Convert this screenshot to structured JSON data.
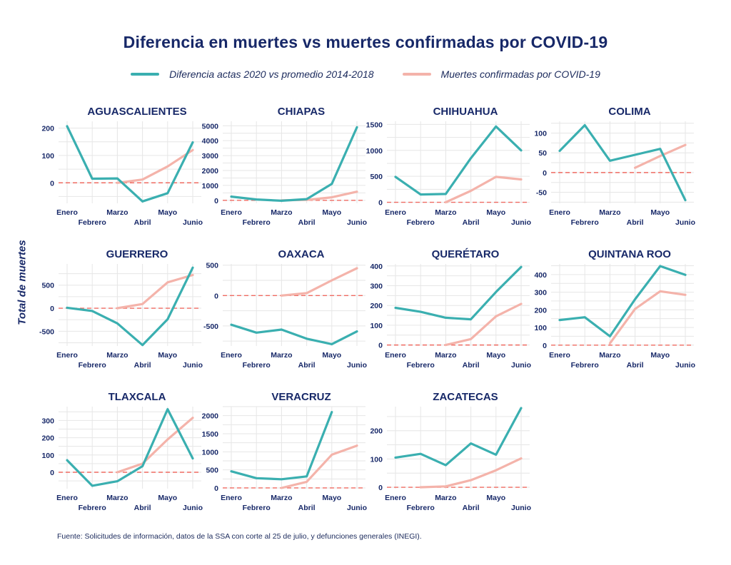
{
  "title": "Diferencia en muertes vs muertes confirmadas por COVID-19",
  "legend": [
    {
      "label": "Diferencia actas 2020 vs promedio 2014-2018",
      "color": "#3aafb0"
    },
    {
      "label": "Muertes confirmadas por COVID-19",
      "color": "#f4b3aa"
    }
  ],
  "ylabel": "Total de muertes",
  "source": "Fuente: Solicitudes de información, datos de la SSA con corte al 25 de julio, y defunciones generales (INEGI).",
  "colors": {
    "diff": "#3aafb0",
    "covid": "#f4b3aa",
    "zero": "#ef6b62",
    "grid": "#e6e6e6"
  },
  "chart_data": [
    {
      "type": "line",
      "title": "AGUASCALIENTES",
      "x": [
        "Enero",
        "Febrero",
        "Marzo",
        "Abril",
        "Mayo",
        "Junio"
      ],
      "ylim": [
        -75,
        225
      ],
      "yticks": [
        0,
        100,
        200
      ],
      "series": [
        {
          "name": "Diferencia actas 2020 vs promedio 2014-2018",
          "values": [
            207,
            15,
            16,
            -68,
            -38,
            148
          ]
        },
        {
          "name": "Muertes confirmadas por COVID-19",
          "values": [
            null,
            null,
            0,
            12,
            60,
            120
          ]
        }
      ]
    },
    {
      "type": "line",
      "title": "CHIAPAS",
      "x": [
        "Enero",
        "Febrero",
        "Marzo",
        "Abril",
        "Mayo",
        "Junio"
      ],
      "ylim": [
        -200,
        5300
      ],
      "yticks": [
        0,
        1000,
        2000,
        3000,
        4000,
        5000
      ],
      "series": [
        {
          "name": "Diferencia actas 2020 vs promedio 2014-2018",
          "values": [
            250,
            60,
            -30,
            80,
            1100,
            4900
          ]
        },
        {
          "name": "Muertes confirmadas por COVID-19",
          "values": [
            null,
            null,
            0,
            30,
            200,
            580
          ]
        }
      ]
    },
    {
      "type": "line",
      "title": "CHIHUAHUA",
      "x": [
        "Enero",
        "Febrero",
        "Marzo",
        "Abril",
        "Mayo",
        "Junio"
      ],
      "ylim": [
        -20,
        1560
      ],
      "yticks": [
        0,
        500,
        1000,
        1500
      ],
      "series": [
        {
          "name": "Diferencia actas 2020 vs promedio 2014-2018",
          "values": [
            490,
            150,
            160,
            850,
            1460,
            1000
          ]
        },
        {
          "name": "Muertes confirmadas por COVID-19",
          "values": [
            null,
            null,
            0,
            220,
            490,
            440
          ]
        }
      ]
    },
    {
      "type": "line",
      "title": "COLIMA",
      "x": [
        "Enero",
        "Febrero",
        "Marzo",
        "Abril",
        "Mayo",
        "Junio"
      ],
      "ylim": [
        -78,
        130
      ],
      "yticks": [
        -50,
        0,
        50,
        100
      ],
      "series": [
        {
          "name": "Diferencia actas 2020 vs promedio 2014-2018",
          "values": [
            55,
            120,
            30,
            45,
            60,
            -70
          ]
        },
        {
          "name": "Muertes confirmadas por COVID-19",
          "values": [
            null,
            null,
            null,
            12,
            42,
            70
          ]
        }
      ]
    },
    {
      "type": "line",
      "title": "GUERRERO",
      "x": [
        "Enero",
        "Febrero",
        "Marzo",
        "Abril",
        "Mayo",
        "Junio"
      ],
      "ylim": [
        -820,
        960
      ],
      "yticks": [
        -500,
        0,
        500
      ],
      "series": [
        {
          "name": "Diferencia actas 2020 vs promedio 2014-2018",
          "values": [
            10,
            -60,
            -330,
            -800,
            -240,
            880
          ]
        },
        {
          "name": "Muertes confirmadas por COVID-19",
          "values": [
            null,
            null,
            0,
            90,
            560,
            720
          ]
        }
      ]
    },
    {
      "type": "line",
      "title": "OAXACA",
      "x": [
        "Enero",
        "Febrero",
        "Marzo",
        "Abril",
        "Mayo",
        "Junio"
      ],
      "ylim": [
        -830,
        520
      ],
      "yticks": [
        -500,
        0,
        500
      ],
      "series": [
        {
          "name": "Diferencia actas 2020 vs promedio 2014-2018",
          "values": [
            -480,
            -610,
            -560,
            -710,
            -800,
            -590
          ]
        },
        {
          "name": "Muertes confirmadas por COVID-19",
          "values": [
            null,
            null,
            0,
            40,
            250,
            450
          ]
        }
      ]
    },
    {
      "type": "line",
      "title": "QUERÉTARO",
      "x": [
        "Enero",
        "Febrero",
        "Marzo",
        "Abril",
        "Mayo",
        "Junio"
      ],
      "ylim": [
        -5,
        410
      ],
      "yticks": [
        0,
        100,
        200,
        300,
        400
      ],
      "series": [
        {
          "name": "Diferencia actas 2020 vs promedio 2014-2018",
          "values": [
            188,
            168,
            138,
            130,
            268,
            395
          ]
        },
        {
          "name": "Muertes confirmadas por COVID-19",
          "values": [
            null,
            null,
            0,
            30,
            145,
            208
          ]
        }
      ]
    },
    {
      "type": "line",
      "title": "QUINTANA ROO",
      "x": [
        "Enero",
        "Febrero",
        "Marzo",
        "Abril",
        "Mayo",
        "Junio"
      ],
      "ylim": [
        -5,
        460
      ],
      "yticks": [
        0,
        100,
        200,
        300,
        400
      ],
      "series": [
        {
          "name": "Diferencia actas 2020 vs promedio 2014-2018",
          "values": [
            142,
            158,
            50,
            260,
            448,
            398
          ]
        },
        {
          "name": "Muertes confirmadas por COVID-19",
          "values": [
            null,
            null,
            10,
            205,
            305,
            285
          ]
        }
      ]
    },
    {
      "type": "line",
      "title": "TLAXCALA",
      "x": [
        "Enero",
        "Febrero",
        "Marzo",
        "Abril",
        "Mayo",
        "Junio"
      ],
      "ylim": [
        -95,
        380
      ],
      "yticks": [
        0,
        100,
        200,
        300
      ],
      "series": [
        {
          "name": "Diferencia actas 2020 vs promedio 2014-2018",
          "values": [
            70,
            -78,
            -52,
            35,
            365,
            80
          ]
        },
        {
          "name": "Muertes confirmadas por COVID-19",
          "values": [
            null,
            null,
            0,
            50,
            190,
            315
          ]
        }
      ]
    },
    {
      "type": "line",
      "title": "VERACRUZ",
      "x": [
        "Enero",
        "Febrero",
        "Marzo",
        "Abril",
        "Mayo",
        "Junio"
      ],
      "ylim": [
        -20,
        2250
      ],
      "yticks": [
        0,
        500,
        1000,
        1500,
        2000
      ],
      "series": [
        {
          "name": "Diferencia actas 2020 vs promedio 2014-2018",
          "values": [
            460,
            270,
            240,
            320,
            2100,
            null
          ]
        },
        {
          "name": "Muertes confirmadas por COVID-19",
          "values": [
            null,
            null,
            0,
            170,
            920,
            1170
          ]
        }
      ]
    },
    {
      "type": "line",
      "title": "ZACATECAS",
      "x": [
        "Enero",
        "Febrero",
        "Marzo",
        "Abril",
        "Mayo",
        "Junio"
      ],
      "ylim": [
        -5,
        285
      ],
      "yticks": [
        0,
        100,
        200
      ],
      "series": [
        {
          "name": "Diferencia actas 2020 vs promedio 2014-2018",
          "values": [
            105,
            118,
            78,
            155,
            115,
            280
          ]
        },
        {
          "name": "Muertes confirmadas por COVID-19",
          "values": [
            null,
            0,
            3,
            25,
            60,
            102
          ]
        }
      ]
    }
  ]
}
